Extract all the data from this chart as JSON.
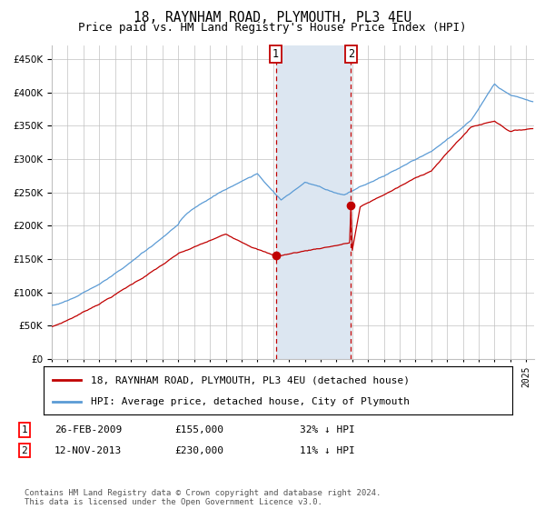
{
  "title": "18, RAYNHAM ROAD, PLYMOUTH, PL3 4EU",
  "subtitle": "Price paid vs. HM Land Registry's House Price Index (HPI)",
  "hpi_label": "HPI: Average price, detached house, City of Plymouth",
  "price_label": "18, RAYNHAM ROAD, PLYMOUTH, PL3 4EU (detached house)",
  "footer": "Contains HM Land Registry data © Crown copyright and database right 2024.\nThis data is licensed under the Open Government Licence v3.0.",
  "sale1_date": "26-FEB-2009",
  "sale1_price": 155000,
  "sale1_label": "32% ↓ HPI",
  "sale2_date": "12-NOV-2013",
  "sale2_price": 230000,
  "sale2_label": "11% ↓ HPI",
  "ylim": [
    0,
    470000
  ],
  "yticks": [
    0,
    50000,
    100000,
    150000,
    200000,
    250000,
    300000,
    350000,
    400000,
    450000
  ],
  "hpi_color": "#5b9bd5",
  "price_color": "#c00000",
  "vline_color": "#c00000",
  "shade_color": "#dce6f1",
  "grid_color": "#c0c0c0",
  "bg_color": "#ffffff"
}
